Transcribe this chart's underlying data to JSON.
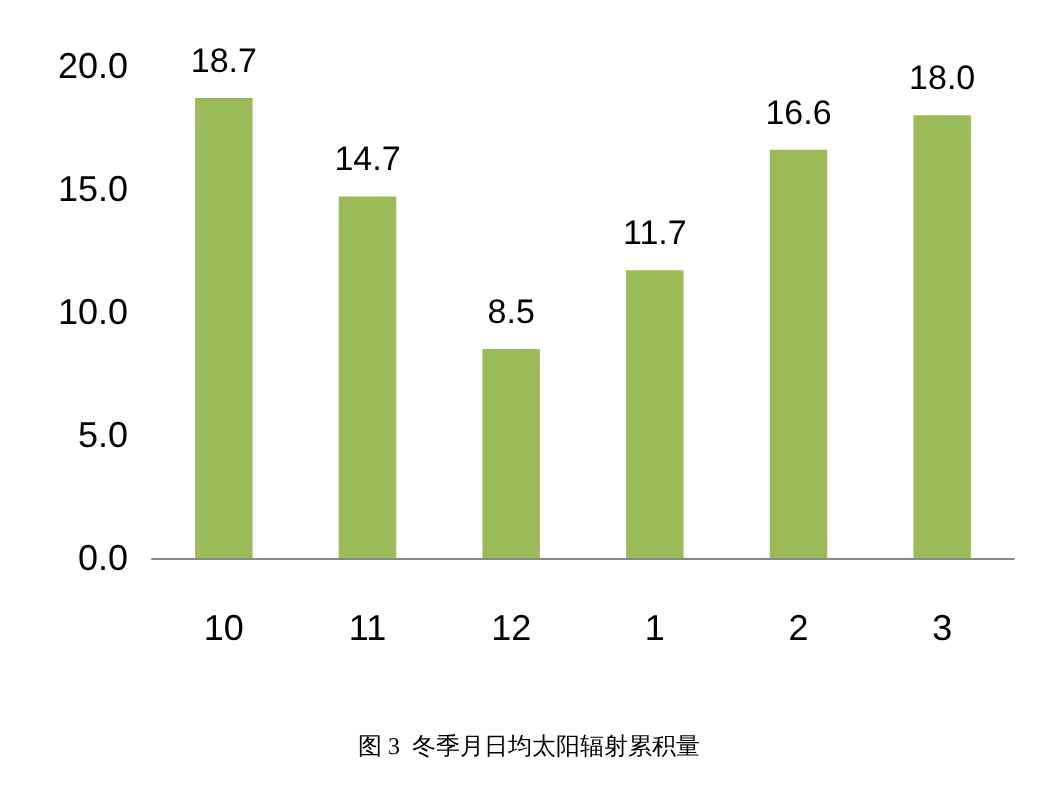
{
  "chart_data": {
    "type": "bar",
    "title": "图 3  冬季月日均太阳辐射累积量",
    "categories": [
      "10",
      "11",
      "12",
      "1",
      "2",
      "3"
    ],
    "values": [
      18.7,
      14.7,
      8.5,
      11.7,
      16.6,
      18.0
    ],
    "value_labels": [
      "18.7",
      "14.7",
      "8.5",
      "11.7",
      "16.6",
      "18.0"
    ],
    "color": "#9bbb59",
    "ylim": [
      0,
      20
    ],
    "yticks": [
      {
        "value": 0,
        "label": "0.0"
      },
      {
        "value": 5,
        "label": "5.0"
      },
      {
        "value": 10,
        "label": "10.0"
      },
      {
        "value": 15,
        "label": "15.0"
      },
      {
        "value": 20,
        "label": "20.0"
      }
    ],
    "grid": false
  }
}
